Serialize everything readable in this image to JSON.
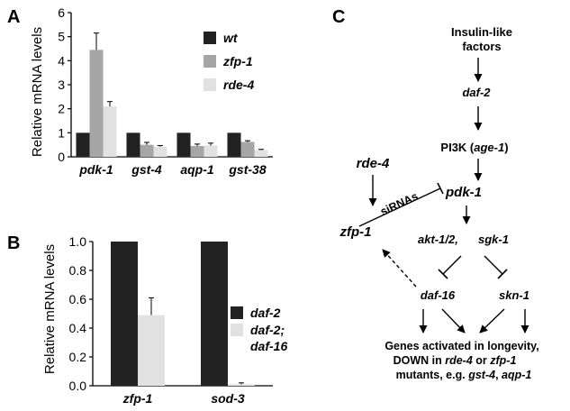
{
  "panels": {
    "a": "A",
    "b": "B",
    "c": "C"
  },
  "chart_data": [
    {
      "type": "bar",
      "panel": "A",
      "ylabel": "Relative mRNA levels",
      "ylim": [
        0,
        6
      ],
      "yticks": [
        "0",
        "1",
        "2",
        "3",
        "4",
        "5",
        "6"
      ],
      "categories": [
        "pdk-1",
        "gst-4",
        "aqp-1",
        "gst-38"
      ],
      "series": [
        {
          "name": "wt",
          "values": [
            1,
            1,
            1,
            1
          ],
          "errors": [
            0,
            0,
            0,
            0
          ],
          "color": "#222222"
        },
        {
          "name": "zfp-1",
          "values": [
            4.45,
            0.5,
            0.45,
            0.62
          ],
          "errors": [
            0.7,
            0.1,
            0.08,
            0.05
          ],
          "color": "#a6a6a6"
        },
        {
          "name": "rde-4",
          "values": [
            2.1,
            0.42,
            0.47,
            0.28
          ],
          "errors": [
            0.2,
            0.05,
            0.1,
            0.03
          ],
          "color": "#e1e1e1"
        }
      ],
      "grid": false,
      "legend": "top-right"
    },
    {
      "type": "bar",
      "panel": "B",
      "ylabel": "Relative mRNA levels",
      "ylim": [
        0,
        1
      ],
      "yticks": [
        "0.0",
        "0.2",
        "0.4",
        "0.6",
        "0.8",
        "1.0"
      ],
      "categories": [
        "zfp-1",
        "sod-3"
      ],
      "series": [
        {
          "name": "daf-2",
          "values": [
            1.0,
            1.0
          ],
          "errors": [
            0,
            0
          ],
          "color": "#222222"
        },
        {
          "name_lines": [
            "daf-2;",
            "daf-16"
          ],
          "values": [
            0.49,
            0.01
          ],
          "errors": [
            0.12,
            0.01
          ],
          "color": "#e1e1e1"
        }
      ],
      "grid": false,
      "legend": "right"
    }
  ],
  "diagram": {
    "insulin_line1": "Insulin-like",
    "insulin_line2": "factors",
    "daf2": "daf-2",
    "pi3k_prefix": "PI3K (",
    "pi3k_gene": "age-1",
    "pi3k_suffix": ")",
    "pdk1": "pdk-1",
    "rde4": "rde-4",
    "sirnas": "siRNAs",
    "zfp1": "zfp-1",
    "akt": "akt-1/2,",
    "sgk": "sgk-1",
    "daf16": "daf-16",
    "skn1": "skn-1",
    "genes_line1": "Genes activated in longevity,",
    "genes_line2_a": "DOWN in ",
    "genes_line2_b": "rde-4",
    "genes_line2_c": " or ",
    "genes_line2_d": "zfp-1",
    "genes_line3_a": "mutants, e.g. ",
    "genes_line3_b": "gst-4",
    "genes_line3_c": ", ",
    "genes_line3_d": "aqp-1"
  }
}
